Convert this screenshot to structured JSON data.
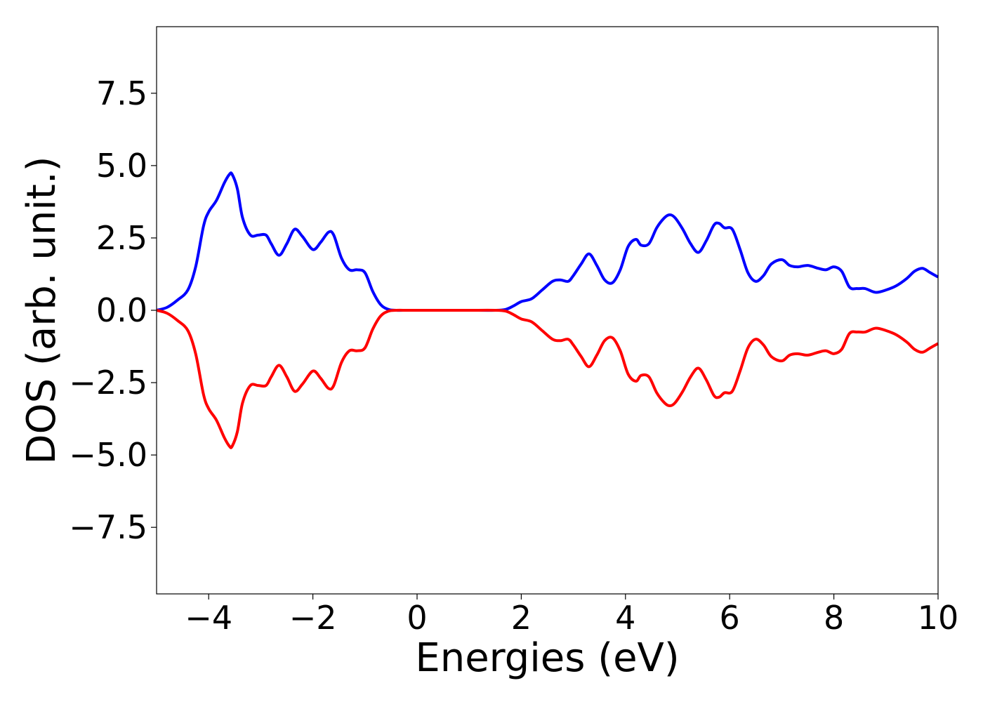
{
  "chart_data": {
    "type": "line",
    "title": "",
    "xlabel": "Energies (eV)",
    "ylabel": "DOS (arb. unit.)",
    "xlim": [
      -5,
      10
    ],
    "ylim": [
      -9.8,
      9.8
    ],
    "grid": false,
    "legend": "none",
    "xticks": [
      -4,
      -2,
      0,
      2,
      4,
      6,
      8,
      10
    ],
    "xtick_labels": [
      "−4",
      "−2",
      "0",
      "2",
      "4",
      "6",
      "8",
      "10"
    ],
    "yticks": [
      7.5,
      5.0,
      2.5,
      0.0,
      -2.5,
      -5.0,
      -7.5
    ],
    "ytick_labels": [
      "7.5",
      "5.0",
      "2.5",
      "0.0",
      "−2.5",
      "−5.0",
      "−7.5"
    ],
    "series": [
      {
        "color": "#0000ff",
        "x": [
          -5.0,
          -4.8,
          -4.6,
          -4.4,
          -4.25,
          -4.1,
          -4.0,
          -3.85,
          -3.7,
          -3.6,
          -3.55,
          -3.45,
          -3.35,
          -3.2,
          -3.05,
          -2.9,
          -2.8,
          -2.65,
          -2.5,
          -2.35,
          -2.2,
          -2.0,
          -1.85,
          -1.7,
          -1.6,
          -1.45,
          -1.3,
          -1.15,
          -1.0,
          -0.85,
          -0.7,
          -0.55,
          -0.4,
          -0.2,
          0.0,
          0.5,
          1.0,
          1.5,
          1.7,
          1.85,
          2.0,
          2.2,
          2.4,
          2.6,
          2.75,
          2.9,
          3.0,
          3.15,
          3.3,
          3.45,
          3.6,
          3.75,
          3.9,
          4.05,
          4.2,
          4.3,
          4.45,
          4.6,
          4.75,
          4.85,
          4.95,
          5.1,
          5.25,
          5.4,
          5.55,
          5.7,
          5.8,
          5.9,
          6.05,
          6.2,
          6.35,
          6.5,
          6.65,
          6.8,
          7.0,
          7.15,
          7.3,
          7.5,
          7.7,
          7.85,
          8.0,
          8.15,
          8.3,
          8.45,
          8.6,
          8.8,
          9.0,
          9.2,
          9.4,
          9.55,
          9.7,
          9.85,
          10.0
        ],
        "values": [
          0.0,
          0.1,
          0.35,
          0.7,
          1.5,
          2.9,
          3.4,
          3.8,
          4.4,
          4.7,
          4.7,
          4.2,
          3.2,
          2.6,
          2.6,
          2.6,
          2.3,
          1.9,
          2.3,
          2.8,
          2.55,
          2.1,
          2.35,
          2.7,
          2.6,
          1.8,
          1.4,
          1.4,
          1.3,
          0.65,
          0.2,
          0.03,
          0.0,
          0.0,
          0.0,
          0.0,
          0.0,
          0.0,
          0.03,
          0.15,
          0.3,
          0.4,
          0.7,
          1.0,
          1.05,
          1.0,
          1.2,
          1.6,
          1.95,
          1.55,
          1.05,
          0.95,
          1.4,
          2.2,
          2.45,
          2.25,
          2.3,
          2.85,
          3.2,
          3.3,
          3.2,
          2.8,
          2.3,
          2.0,
          2.4,
          2.95,
          3.0,
          2.85,
          2.8,
          2.1,
          1.3,
          1.0,
          1.2,
          1.6,
          1.75,
          1.55,
          1.5,
          1.55,
          1.45,
          1.4,
          1.5,
          1.35,
          0.8,
          0.75,
          0.75,
          0.62,
          0.7,
          0.85,
          1.1,
          1.35,
          1.45,
          1.3,
          1.15
        ]
      },
      {
        "color": "#ff0000",
        "x": [
          -5.0,
          -4.8,
          -4.6,
          -4.4,
          -4.25,
          -4.1,
          -4.0,
          -3.85,
          -3.7,
          -3.6,
          -3.55,
          -3.45,
          -3.35,
          -3.2,
          -3.05,
          -2.9,
          -2.8,
          -2.65,
          -2.5,
          -2.35,
          -2.2,
          -2.0,
          -1.85,
          -1.7,
          -1.6,
          -1.45,
          -1.3,
          -1.15,
          -1.0,
          -0.85,
          -0.7,
          -0.55,
          -0.4,
          -0.2,
          0.0,
          0.5,
          1.0,
          1.5,
          1.7,
          1.85,
          2.0,
          2.2,
          2.4,
          2.6,
          2.75,
          2.9,
          3.0,
          3.15,
          3.3,
          3.45,
          3.6,
          3.75,
          3.9,
          4.05,
          4.2,
          4.3,
          4.45,
          4.6,
          4.75,
          4.85,
          4.95,
          5.1,
          5.25,
          5.4,
          5.55,
          5.7,
          5.8,
          5.9,
          6.05,
          6.2,
          6.35,
          6.5,
          6.65,
          6.8,
          7.0,
          7.15,
          7.3,
          7.5,
          7.7,
          7.85,
          8.0,
          8.15,
          8.3,
          8.45,
          8.6,
          8.8,
          9.0,
          9.2,
          9.4,
          9.55,
          9.7,
          9.85,
          10.0
        ],
        "values": [
          0.0,
          -0.1,
          -0.35,
          -0.7,
          -1.5,
          -2.9,
          -3.4,
          -3.8,
          -4.4,
          -4.7,
          -4.7,
          -4.2,
          -3.2,
          -2.6,
          -2.6,
          -2.6,
          -2.3,
          -1.9,
          -2.3,
          -2.8,
          -2.55,
          -2.1,
          -2.35,
          -2.7,
          -2.6,
          -1.8,
          -1.4,
          -1.4,
          -1.3,
          -0.65,
          -0.2,
          -0.03,
          0.0,
          0.0,
          0.0,
          0.0,
          0.0,
          0.0,
          -0.03,
          -0.15,
          -0.3,
          -0.4,
          -0.7,
          -1.0,
          -1.05,
          -1.0,
          -1.2,
          -1.6,
          -1.95,
          -1.55,
          -1.05,
          -0.95,
          -1.4,
          -2.2,
          -2.45,
          -2.25,
          -2.3,
          -2.85,
          -3.2,
          -3.3,
          -3.2,
          -2.8,
          -2.3,
          -2.0,
          -2.4,
          -2.95,
          -3.0,
          -2.85,
          -2.8,
          -2.1,
          -1.3,
          -1.0,
          -1.2,
          -1.6,
          -1.75,
          -1.55,
          -1.5,
          -1.55,
          -1.45,
          -1.4,
          -1.5,
          -1.35,
          -0.8,
          -0.75,
          -0.75,
          -0.62,
          -0.7,
          -0.85,
          -1.1,
          -1.35,
          -1.45,
          -1.3,
          -1.15
        ]
      }
    ]
  }
}
